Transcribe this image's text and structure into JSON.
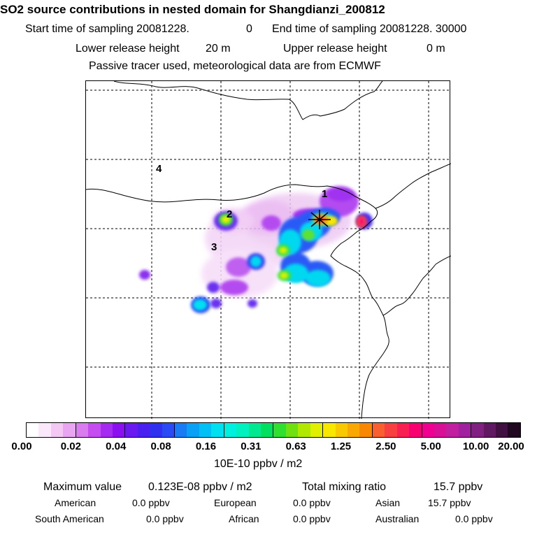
{
  "header": {
    "title": "SO2 source contributions in nested domain for Shangdianzi_200812",
    "start_label": "Start time of sampling 20081228.",
    "start_val": "0",
    "end_label": "End time of sampling 20081228. 30000",
    "lower_label": "Lower release height",
    "lower_val": "20 m",
    "upper_label": "Upper release height",
    "upper_val": "0 m",
    "note": "Passive tracer used, meteorological data are from ECMWF"
  },
  "map": {
    "region_labels": [
      "1",
      "2",
      "3",
      "4"
    ],
    "marker": "release-site-star"
  },
  "colorbar": {
    "ticks": [
      "0.00",
      "0.02",
      "0.04",
      "0.08",
      "0.16",
      "0.31",
      "0.63",
      "1.25",
      "2.50",
      "5.00",
      "10.00",
      "20.00"
    ],
    "unit": "10E-10 ppbv / m2",
    "colors": [
      "#ffffff",
      "#fbe9fb",
      "#f3c9f3",
      "#e9a6f0",
      "#d87cf0",
      "#c44cf0",
      "#a52bf0",
      "#8a10f0",
      "#6a1af0",
      "#4a20f0",
      "#3030f0",
      "#2a4af5",
      "#1a7cf5",
      "#0aa0f5",
      "#00c0f5",
      "#00e0f0",
      "#00f0e0",
      "#00f0c0",
      "#00e890",
      "#00e060",
      "#30e030",
      "#70e010",
      "#b0e800",
      "#e0f000",
      "#f8e800",
      "#f8c800",
      "#f8a800",
      "#f88800",
      "#f86030",
      "#f84040",
      "#f82050",
      "#f80070",
      "#f00090",
      "#d81098",
      "#c020a0",
      "#a020a0",
      "#802080",
      "#601860",
      "#401040",
      "#200820"
    ]
  },
  "stats": {
    "max_label": "Maximum value",
    "max_val": "0.123E-08 ppbv / m2",
    "total_label": "Total mixing ratio",
    "total_val": "15.7 ppbv",
    "american_label": "American",
    "american_val": "0.0 ppbv",
    "european_label": "European",
    "european_val": "0.0 ppbv",
    "asian_label": "Asian",
    "asian_val": "15.7 ppbv",
    "south_american_label": "South American",
    "south_american_val": "0.0 ppbv",
    "african_label": "African",
    "african_val": "0.0 ppbv",
    "australian_label": "Australian",
    "australian_val": "0.0 ppbv"
  }
}
